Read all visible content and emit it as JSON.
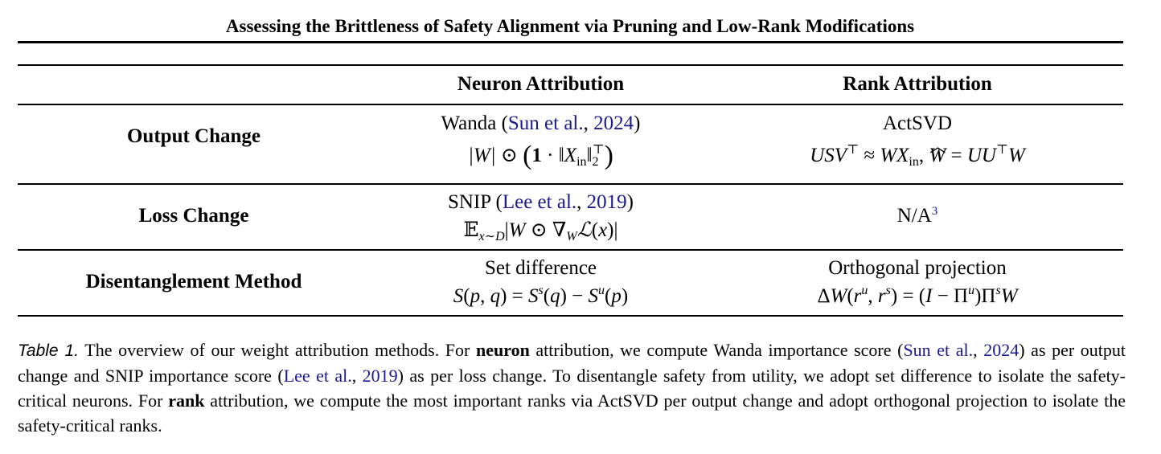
{
  "running_head": "Assessing the Brittleness of Safety Alignment via Pruning and Low-Rank Modifications",
  "table": {
    "columns": [
      "",
      "Neuron Attribution",
      "Rank Attribution"
    ],
    "rows": [
      {
        "label": "Output Change",
        "neuron_method": "Wanda",
        "neuron_cite_text": "Sun et al.",
        "neuron_cite_year": "2024",
        "neuron_formula": "|W| ⊙ (1 · ‖X_in‖₂^⊤)",
        "rank_method": "ActSVD",
        "rank_formula": "USV^⊤ ≈ WX_in, Ŵ = UU^⊤W"
      },
      {
        "label": "Loss Change",
        "neuron_method": "SNIP",
        "neuron_cite_text": "Lee et al.",
        "neuron_cite_year": "2019",
        "neuron_formula": "𝔼_{x∼D}|W ⊙ ∇_W ℒ(x)|",
        "rank_method": "N/A",
        "rank_footnote": "3"
      },
      {
        "label": "Disentanglement Method",
        "neuron_method": "Set difference",
        "neuron_formula": "S(p, q) = S^s(q) − S^u(p)",
        "rank_method": "Orthogonal projection",
        "rank_formula": "ΔW(r^u, r^s) = (I − Π^u)Π^sW"
      }
    ]
  },
  "caption": {
    "label": "Table 1.",
    "t1": "The overview of our weight attribution methods. For ",
    "b1": "neuron",
    "t2": " attribution, we compute Wanda importance score (",
    "cite1_text": "Sun et al.",
    "cite1_year": "2024",
    "t3": ") as per output change and SNIP importance score (",
    "cite2_text": "Lee et al.",
    "cite2_year": "2019",
    "t4": ") as per loss change. To disentangle safety from utility, we adopt set difference to isolate the safety-critical neurons. For ",
    "b2": "rank",
    "t5": " attribution, we compute the most important ranks via ActSVD per output change and adopt orthogonal projection to isolate the safety-critical ranks."
  },
  "colors": {
    "citation": "#1a1a8f",
    "text": "#000000"
  }
}
